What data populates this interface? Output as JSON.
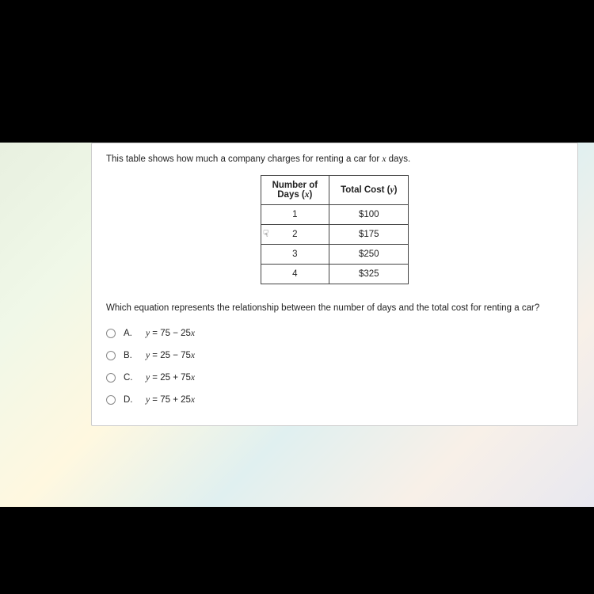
{
  "intro": {
    "prefix": "This table shows how much a company charges for renting a car for ",
    "var": "x",
    "suffix": " days."
  },
  "table": {
    "header_left_1": "Number of",
    "header_left_2": "Days (",
    "header_left_var": "x",
    "header_left_3": ")",
    "header_right_1": "Total Cost (",
    "header_right_var": "y",
    "header_right_2": ")",
    "rows": [
      {
        "x": "1",
        "y": "$100"
      },
      {
        "x": "2",
        "y": "$175"
      },
      {
        "x": "3",
        "y": "$250"
      },
      {
        "x": "4",
        "y": "$325"
      }
    ]
  },
  "question": "Which equation represents the relationship between the number of days and the total cost for renting a car?",
  "options": [
    {
      "letter": "A.",
      "eq_l": "y",
      "eq_m": " = 75 − 25",
      "eq_r": "x"
    },
    {
      "letter": "B.",
      "eq_l": "y",
      "eq_m": " = 25 − 75",
      "eq_r": "x"
    },
    {
      "letter": "C.",
      "eq_l": "y",
      "eq_m": " = 25 + 75",
      "eq_r": "x"
    },
    {
      "letter": "D.",
      "eq_l": "y",
      "eq_m": " = 75 + 25",
      "eq_r": "x"
    }
  ]
}
